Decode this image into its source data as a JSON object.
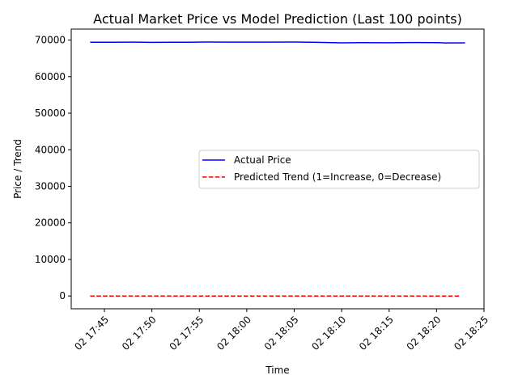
{
  "chart_data": {
    "type": "line",
    "title": "Actual Market Price vs Model Prediction (Last 100 points)",
    "xlabel": "Time",
    "ylabel": "Price / Trend",
    "x_ticks": [
      "02 17:45",
      "02 17:50",
      "02 17:55",
      "02 18:00",
      "02 18:05",
      "02 18:10",
      "02 18:15",
      "02 18:20",
      "02 18:25"
    ],
    "y_ticks": [
      0,
      10000,
      20000,
      30000,
      40000,
      50000,
      60000,
      70000
    ],
    "xlim": [
      "2024-04-02 17:41:30",
      "2024-04-02 18:25:00"
    ],
    "ylim": [
      -3500,
      73000
    ],
    "legend": {
      "placement": "center-right"
    },
    "series": [
      {
        "name": "Actual Price",
        "color": "#0000ff",
        "style": "solid",
        "points": [
          {
            "x": "2024-04-02 17:43:30",
            "y": 69400
          },
          {
            "x": "2024-04-02 17:46:00",
            "y": 69390
          },
          {
            "x": "2024-04-02 17:48:00",
            "y": 69450
          },
          {
            "x": "2024-04-02 17:50:00",
            "y": 69380
          },
          {
            "x": "2024-04-02 17:52:00",
            "y": 69410
          },
          {
            "x": "2024-04-02 17:54:00",
            "y": 69390
          },
          {
            "x": "2024-04-02 17:56:00",
            "y": 69470
          },
          {
            "x": "2024-04-02 17:58:00",
            "y": 69440
          },
          {
            "x": "2024-04-02 18:00:00",
            "y": 69450
          },
          {
            "x": "2024-04-02 18:02:00",
            "y": 69430
          },
          {
            "x": "2024-04-02 18:05:00",
            "y": 69460
          },
          {
            "x": "2024-04-02 18:07:00",
            "y": 69400
          },
          {
            "x": "2024-04-02 18:10:00",
            "y": 69250
          },
          {
            "x": "2024-04-02 18:12:00",
            "y": 69300
          },
          {
            "x": "2024-04-02 18:15:00",
            "y": 69270
          },
          {
            "x": "2024-04-02 18:18:00",
            "y": 69330
          },
          {
            "x": "2024-04-02 18:20:00",
            "y": 69300
          },
          {
            "x": "2024-04-02 18:21:00",
            "y": 69230
          },
          {
            "x": "2024-04-02 18:23:00",
            "y": 69240
          }
        ]
      },
      {
        "name": "Predicted Trend (1=Increase, 0=Decrease)",
        "color": "#ff0000",
        "style": "dashed",
        "points": [
          {
            "x": "2024-04-02 17:43:30",
            "y": 0
          },
          {
            "x": "2024-04-02 18:22:30",
            "y": 0
          }
        ]
      }
    ]
  }
}
